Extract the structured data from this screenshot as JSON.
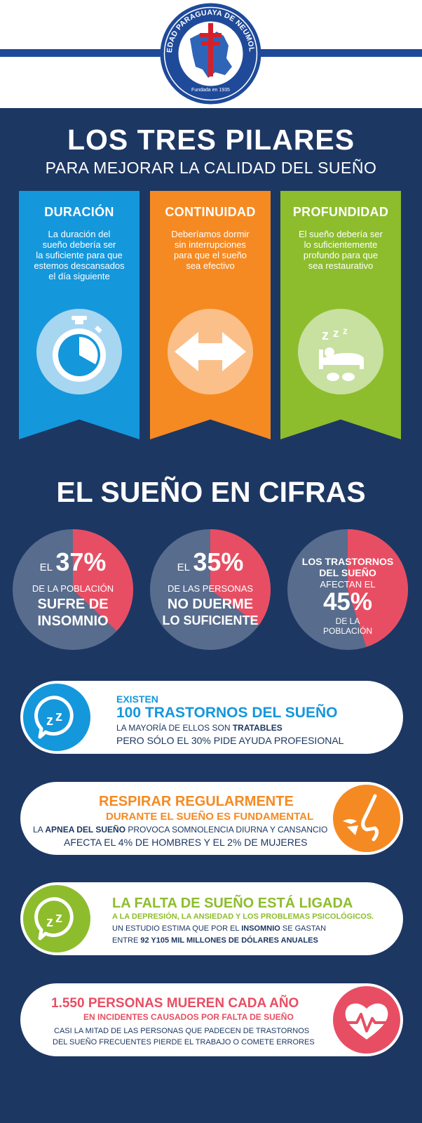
{
  "header": {
    "logo_text": "SOCIEDAD PARAGUAYA DE NEUMOLOGÍA",
    "logo_founded": "Fundada en 1935",
    "colors": {
      "line": "#1f4a9a",
      "logo_ring": "#1f4a9a",
      "cross": "#d4202a"
    }
  },
  "title": "LOS TRES PILARES",
  "subtitle": "PARA MEJORAR LA CALIDAD DEL SUEÑO",
  "pillars": [
    {
      "title": "DURACIÓN",
      "lines": [
        "La duración del",
        "sueño debería ser",
        "la suficiente para que",
        "estemos descansados",
        "el día siguiente"
      ],
      "icon": "stopwatch-icon",
      "color": "#1597dc"
    },
    {
      "title": "CONTINUIDAD",
      "lines": [
        "Deberíamos dormir",
        "sin interrupciones",
        "para que el sueño",
        "sea efectivo"
      ],
      "icon": "double-arrow-icon",
      "color": "#f58a22"
    },
    {
      "title": "PROFUNDIDAD",
      "lines": [
        "El sueño debería ser",
        "lo suficientemente",
        "profundo para que",
        "sea restaurativo"
      ],
      "icon": "sleeping-bed-icon",
      "color": "#8dbd2d"
    }
  ],
  "cifras": {
    "title": "EL SUEÑO EN CIFRAS",
    "colors": {
      "pie_base": "#586c8d",
      "pie_share": "#e84e63"
    },
    "stats": [
      {
        "value": 37,
        "pre": "EL",
        "pct": "37%",
        "line1": "DE LA POBLACIÓN",
        "line2": "SUFRE DE",
        "line3": "INSOMNIO"
      },
      {
        "value": 35,
        "pre": "EL",
        "pct": "35%",
        "line1": "DE LAS PERSONAS",
        "line2": "NO DUERME",
        "line3": "LO SUFICIENTE"
      },
      {
        "value": 45,
        "line1": "LOS TRASTORNOS",
        "line2": "DEL SUEÑO",
        "line3": "AFECTAN EL",
        "pct": "45%",
        "line4": "DE LA",
        "line5": "POBLACIÓN"
      }
    ]
  },
  "cards": [
    {
      "icon": "chat-zz-icon",
      "color": "#1597dc",
      "line1": "EXISTEN",
      "line2": "100 TRASTORNOS DEL SUEÑO",
      "line3a": "LA MAYORÍA DE ELLOS SON ",
      "line3b": "TRATABLES",
      "line4": "PERO SÓLO EL 30% PIDE AYUDA PROFESIONAL"
    },
    {
      "icon": "nose-breathing-icon",
      "color": "#f58a22",
      "line1": "RESPIRAR REGULARMENTE",
      "line2": "DURANTE EL SUEÑO ES FUNDAMENTAL",
      "line3a": "LA ",
      "line3b": "APNEA DEL SUEÑO",
      "line3c": " PROVOCA SOMNOLENCIA DIURNA Y CANSANCIO",
      "line4": "AFECTA EL 4% DE HOMBRES Y EL 2% DE MUJERES"
    },
    {
      "icon": "chat-zz-icon",
      "color": "#8dbd2d",
      "line1": "LA FALTA DE SUEÑO ESTÁ LIGADA",
      "line2": "A LA DEPRESIÓN, LA ANSIEDAD Y LOS PROBLEMAS PSICOLÓGICOS.",
      "line3a": "UN ESTUDIO ESTIMA QUE POR EL ",
      "line3b": "INSOMNIO",
      "line3c": " SE GASTAN",
      "line4a": "ENTRE ",
      "line4b": "92 Y105 MIL MILLONES DE DÓLARES ANUALES"
    },
    {
      "icon": "heart-pulse-icon",
      "color": "#e84e63",
      "line1": "1.550 PERSONAS MUEREN CADA AÑO",
      "line2": "EN INCIDENTES CAUSADOS POR FALTA DE SUEÑO",
      "line3": "CASI LA MITAD DE LAS PERSONAS QUE PADECEN DE TRASTORNOS",
      "line4": "DEL SUEÑO FRECUENTES PIERDE EL TRABAJO O COMETE ERRORES"
    }
  ]
}
